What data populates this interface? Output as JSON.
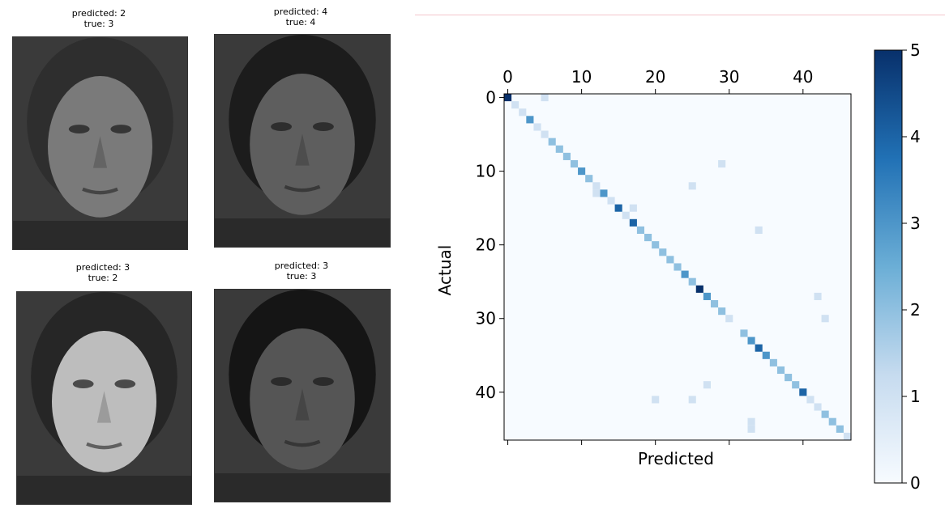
{
  "faces": [
    {
      "predicted_label": "predicted: 2",
      "true_label": "true: 3",
      "tone": "#7a7a7a",
      "hair": "#2e2e2e"
    },
    {
      "predicted_label": "predicted: 4",
      "true_label": "true: 4",
      "tone": "#5e5e5e",
      "hair": "#1c1c1c"
    },
    {
      "predicted_label": "predicted: 3",
      "true_label": "true: 2",
      "tone": "#bdbdbd",
      "hair": "#262626"
    },
    {
      "predicted_label": "predicted: 3",
      "true_label": "true: 3",
      "tone": "#555555",
      "hair": "#151515"
    }
  ],
  "chart_data": {
    "type": "heatmap",
    "xlabel": "Predicted",
    "ylabel": "Actual",
    "size": 47,
    "x_ticks": [
      0,
      10,
      20,
      30,
      40
    ],
    "y_ticks": [
      0,
      10,
      20,
      30,
      40
    ],
    "colorbar": {
      "min": 0,
      "max": 5,
      "ticks": [
        0,
        1,
        2,
        3,
        4,
        5
      ]
    },
    "colormap": [
      "#f7fbff",
      "#08306b"
    ],
    "cells": [
      [
        0,
        0,
        5
      ],
      [
        1,
        1,
        1
      ],
      [
        2,
        2,
        1
      ],
      [
        3,
        3,
        3
      ],
      [
        4,
        4,
        1
      ],
      [
        5,
        5,
        1
      ],
      [
        6,
        6,
        2
      ],
      [
        7,
        7,
        2
      ],
      [
        8,
        8,
        2
      ],
      [
        9,
        9,
        2
      ],
      [
        10,
        10,
        3
      ],
      [
        11,
        11,
        2
      ],
      [
        12,
        12,
        1
      ],
      [
        13,
        13,
        3
      ],
      [
        14,
        14,
        1
      ],
      [
        15,
        15,
        4
      ],
      [
        17,
        17,
        4
      ],
      [
        18,
        18,
        2
      ],
      [
        19,
        19,
        2
      ],
      [
        20,
        20,
        2
      ],
      [
        21,
        21,
        2
      ],
      [
        22,
        22,
        2
      ],
      [
        23,
        23,
        2
      ],
      [
        24,
        24,
        3
      ],
      [
        25,
        25,
        2
      ],
      [
        26,
        26,
        5
      ],
      [
        27,
        27,
        3
      ],
      [
        28,
        28,
        2
      ],
      [
        29,
        29,
        2
      ],
      [
        30,
        30,
        1
      ],
      [
        32,
        32,
        2
      ],
      [
        33,
        33,
        3
      ],
      [
        34,
        34,
        4
      ],
      [
        35,
        35,
        3
      ],
      [
        36,
        36,
        2
      ],
      [
        37,
        37,
        2
      ],
      [
        38,
        38,
        2
      ],
      [
        39,
        39,
        2
      ],
      [
        40,
        40,
        4
      ],
      [
        41,
        41,
        1
      ],
      [
        42,
        42,
        1
      ],
      [
        43,
        43,
        2
      ],
      [
        44,
        44,
        2
      ],
      [
        45,
        45,
        2
      ],
      [
        46,
        46,
        1
      ],
      [
        0,
        5,
        1
      ],
      [
        9,
        29,
        1
      ],
      [
        12,
        25,
        1
      ],
      [
        13,
        12,
        1
      ],
      [
        15,
        17,
        1
      ],
      [
        16,
        16,
        1
      ],
      [
        18,
        34,
        1
      ],
      [
        27,
        42,
        1
      ],
      [
        30,
        43,
        1
      ],
      [
        39,
        27,
        1
      ],
      [
        41,
        20,
        1
      ],
      [
        41,
        25,
        1
      ],
      [
        44,
        33,
        1
      ],
      [
        45,
        33,
        1
      ]
    ]
  }
}
